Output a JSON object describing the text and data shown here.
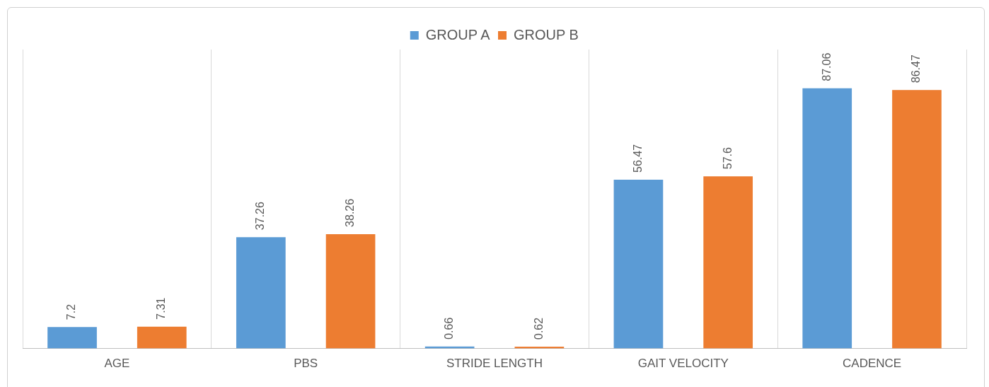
{
  "chart_data": {
    "type": "bar",
    "categories": [
      "AGE",
      "PBS",
      "STRIDE LENGTH",
      "GAIT VELOCITY",
      "CADENCE"
    ],
    "series": [
      {
        "name": "GROUP A",
        "color": "#5b9bd5",
        "values": [
          7.2,
          37.26,
          0.66,
          56.47,
          87.06
        ]
      },
      {
        "name": "GROUP B",
        "color": "#ed7d31",
        "values": [
          7.31,
          38.26,
          0.62,
          57.6,
          86.47
        ]
      }
    ],
    "data_labels": true,
    "grid": "x",
    "legend": "top"
  }
}
